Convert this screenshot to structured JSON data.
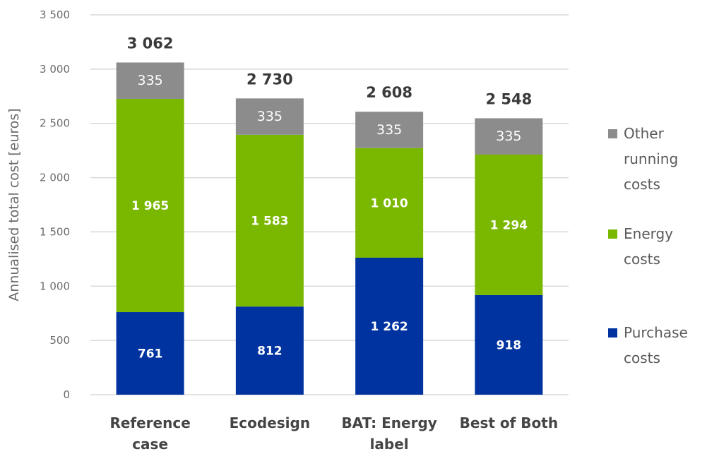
{
  "chart_data": {
    "type": "bar",
    "stacked": true,
    "title": "",
    "xlabel": "",
    "ylabel": "Annualised total cost [euros]",
    "ylim": [
      0,
      3500
    ],
    "yticks": [
      0,
      500,
      1000,
      1500,
      2000,
      2500,
      3000,
      3500
    ],
    "ytick_labels": [
      "0",
      "500",
      "1 000",
      "1 500",
      "2 000",
      "2 500",
      "3 000",
      "3 500"
    ],
    "grid": true,
    "legend_position": "right",
    "categories": [
      [
        "Reference",
        "case"
      ],
      [
        "Ecodesign"
      ],
      [
        "BAT: Energy",
        "label"
      ],
      [
        "Best of Both"
      ]
    ],
    "series": [
      {
        "name": "Purchase costs",
        "legend_lines": [
          "Purchase",
          "costs"
        ],
        "color": "#0033a0",
        "values": [
          761,
          812,
          1262,
          918
        ],
        "labels": [
          "761",
          "812",
          "1 262",
          "918"
        ]
      },
      {
        "name": "Energy costs",
        "legend_lines": [
          "Energy",
          "costs"
        ],
        "color": "#7ab800",
        "values": [
          1965,
          1583,
          1010,
          1294
        ],
        "labels": [
          "1 965",
          "1 583",
          "1 010",
          "1 294"
        ]
      },
      {
        "name": "Other running costs",
        "legend_lines": [
          "Other",
          "running",
          "costs"
        ],
        "color": "#8c8c8c",
        "values": [
          335,
          335,
          335,
          335
        ],
        "labels": [
          "335",
          "335",
          "335",
          "335"
        ]
      }
    ],
    "totals": [
      3062,
      2730,
      2608,
      2548
    ],
    "total_labels": [
      "3 062",
      "2 730",
      "2 608",
      "2 548"
    ]
  }
}
